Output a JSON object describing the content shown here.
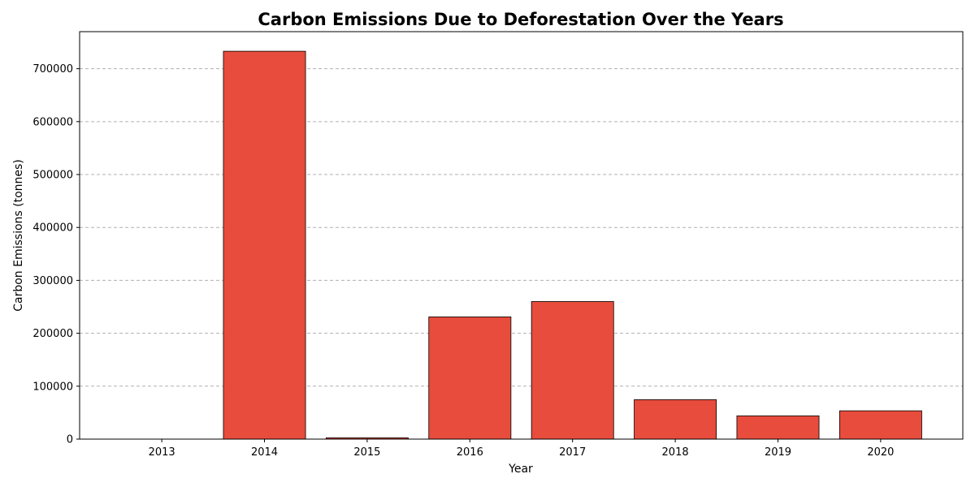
{
  "chart_data": {
    "type": "bar",
    "title": "Carbon Emissions Due to Deforestation Over the Years",
    "xlabel": "Year",
    "ylabel": "Carbon Emissions (tonnes)",
    "categories": [
      "2013",
      "2014",
      "2015",
      "2016",
      "2017",
      "2018",
      "2019",
      "2020"
    ],
    "values": [
      0,
      733000,
      2500,
      231000,
      260000,
      74500,
      44000,
      53500
    ],
    "ylim": [
      0,
      770000
    ],
    "yticks": [
      0,
      100000,
      200000,
      300000,
      400000,
      500000,
      600000,
      700000
    ],
    "grid": "y-axis dashed",
    "legend": "none",
    "colors": {
      "bar": "#e74c3c",
      "bar_edge": "#000000",
      "grid": "#b0b0b0"
    }
  }
}
